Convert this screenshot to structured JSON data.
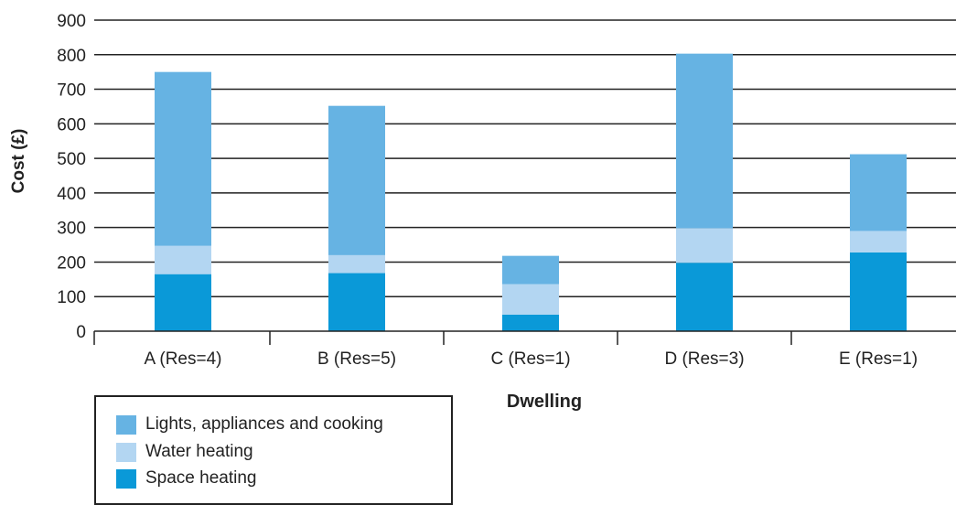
{
  "chart_data": {
    "type": "bar",
    "stacked": true,
    "categories": [
      "A (Res=4)",
      "B (Res=5)",
      "C (Res=1)",
      "D (Res=3)",
      "E (Res=1)"
    ],
    "series": [
      {
        "name": "Space heating",
        "color": "#0a99d8",
        "values": [
          165,
          168,
          48,
          198,
          228
        ]
      },
      {
        "name": "Water heating",
        "color": "#b3d6f2",
        "values": [
          82,
          52,
          88,
          100,
          62
        ]
      },
      {
        "name": "Lights, appliances and cooking",
        "color": "#66b3e3",
        "values": [
          503,
          432,
          82,
          505,
          222
        ]
      }
    ],
    "xlabel": "Dwelling",
    "ylabel": "Cost (£)",
    "ylim": [
      0,
      900
    ],
    "yticks": [
      0,
      100,
      200,
      300,
      400,
      500,
      600,
      700,
      800,
      900
    ],
    "grid": true,
    "legend_position": "bottom-left",
    "legend": [
      {
        "label": "Lights, appliances and cooking",
        "color": "#66b3e3"
      },
      {
        "label": "Water heating",
        "color": "#b3d6f2"
      },
      {
        "label": "Space heating",
        "color": "#0a99d8"
      }
    ]
  }
}
